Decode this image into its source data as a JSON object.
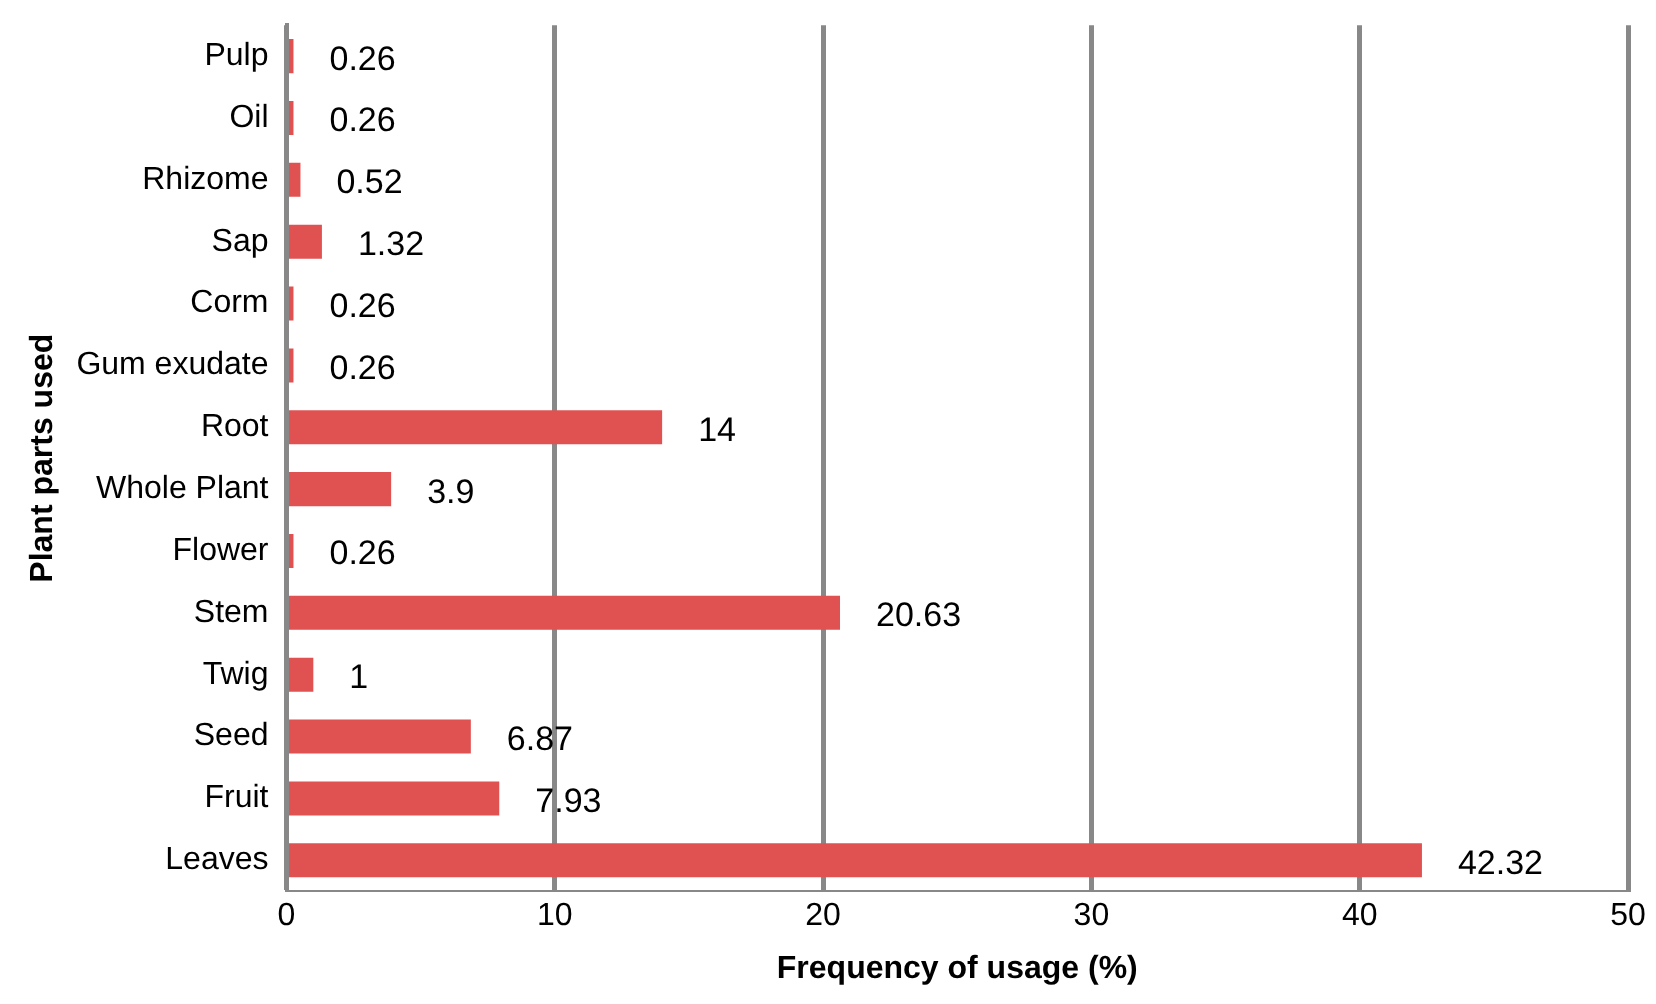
{
  "chart_data": {
    "type": "bar",
    "orientation": "horizontal",
    "xlabel": "Frequency of usage (%)",
    "ylabel": "Plant parts used",
    "categories": [
      "Pulp",
      "Oil",
      "Rhizome",
      "Sap",
      "Corm",
      "Gum exudate",
      "Root",
      "Whole Plant",
      "Flower",
      "Stem",
      "Twig",
      "Seed",
      "Fruit",
      "Leaves"
    ],
    "values": [
      0.26,
      0.26,
      0.52,
      1.32,
      0.26,
      0.26,
      14,
      3.9,
      0.26,
      20.63,
      1,
      6.87,
      7.93,
      42.32
    ],
    "color": "#e05252",
    "xlim": [
      0,
      50
    ],
    "xticks": [
      0,
      10,
      20,
      30,
      40,
      50
    ],
    "grid": "x",
    "data_labels": true,
    "legend": false
  }
}
